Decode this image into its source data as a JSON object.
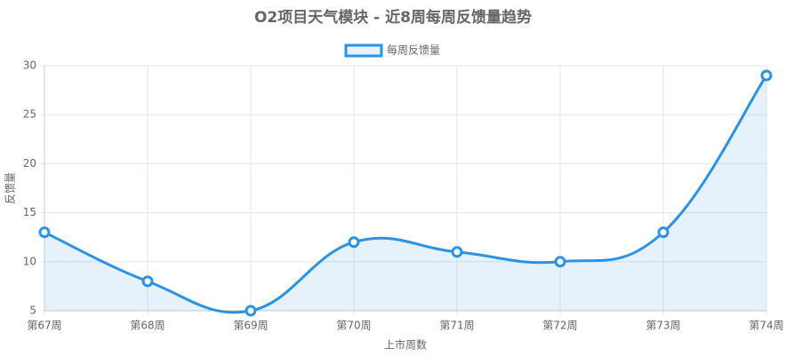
{
  "chart_data": {
    "type": "line",
    "title": "O2项目天气模块 - 近8周每周反馈量趋势",
    "x_label": "上市周数",
    "y_label": "反馈量",
    "categories": [
      "第67周",
      "第68周",
      "第69周",
      "第70周",
      "第71周",
      "第72周",
      "第73周",
      "第74周"
    ],
    "series": [
      {
        "name": "每周反馈量",
        "color": "#2a93e6",
        "values": [
          13,
          8,
          5,
          12,
          11,
          10,
          13,
          29
        ]
      }
    ],
    "ylim": [
      5,
      30
    ],
    "yticks": [
      5,
      10,
      15,
      20,
      25,
      30
    ],
    "grid": true,
    "fill": true,
    "legend": "top"
  }
}
